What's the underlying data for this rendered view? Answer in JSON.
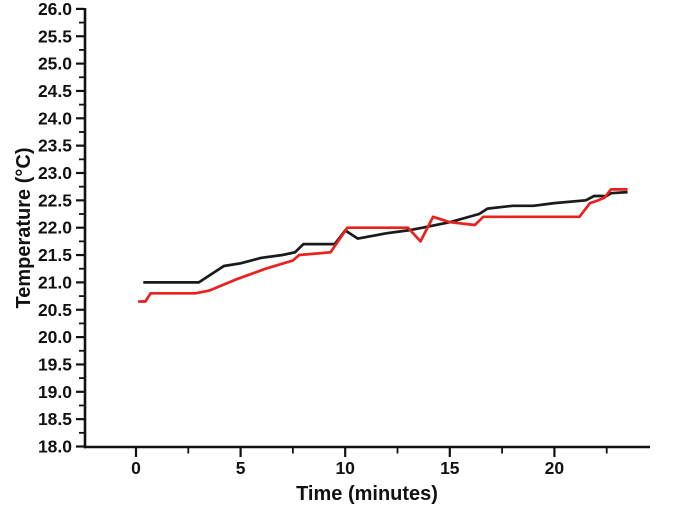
{
  "figure": {
    "background": "#ffffff",
    "axis_color": "#111111"
  },
  "chart_data": {
    "type": "line",
    "title": "",
    "xlabel": "Time (minutes)",
    "ylabel": "Temperature (°C)",
    "xlim": [
      -2.4,
      24.6
    ],
    "ylim": [
      18.0,
      26.0
    ],
    "grid": false,
    "legend": "none",
    "x_major_ticks": [
      0,
      5,
      10,
      15,
      20
    ],
    "x_tick_labels": [
      "0",
      "5",
      "10",
      "15",
      "20"
    ],
    "x_minor_ticks": [
      2.5,
      7.5,
      12.5,
      17.5,
      22.5
    ],
    "y_major_ticks": [
      18.0,
      18.5,
      19.0,
      19.5,
      20.0,
      20.5,
      21.0,
      21.5,
      22.0,
      22.5,
      23.0,
      23.5,
      24.0,
      24.5,
      25.0,
      25.5,
      26.0
    ],
    "y_tick_labels": [
      "18.0",
      "18.5",
      "19.0",
      "19.5",
      "20.0",
      "20.5",
      "21.0",
      "21.5",
      "22.0",
      "22.5",
      "23.0",
      "23.5",
      "24.0",
      "24.5",
      "25.0",
      "25.5",
      "26.0"
    ],
    "y_minor_ticks": [
      18.25,
      18.75,
      19.25,
      19.75,
      20.25,
      20.75,
      21.25,
      21.75,
      22.25,
      22.75,
      23.25,
      23.75,
      24.25,
      24.75,
      25.25,
      25.75
    ],
    "series": [
      {
        "name": "black",
        "color": "#1a1a1a",
        "x": [
          0.35,
          3.0,
          4.2,
          5.0,
          6.0,
          7.0,
          7.6,
          8.0,
          9.5,
          10.0,
          10.6,
          12.0,
          13.0,
          13.7,
          15.0,
          16.4,
          16.8,
          18.0,
          19.0,
          20.0,
          21.5,
          21.9,
          22.5,
          22.7,
          23.5
        ],
        "y": [
          21.0,
          21.0,
          21.3,
          21.35,
          21.45,
          21.5,
          21.55,
          21.7,
          21.7,
          21.95,
          21.8,
          21.9,
          21.95,
          22.0,
          22.1,
          22.25,
          22.35,
          22.4,
          22.4,
          22.45,
          22.5,
          22.58,
          22.58,
          22.63,
          22.65
        ]
      },
      {
        "name": "red",
        "color": "#e8211d",
        "x": [
          0.1,
          0.45,
          0.7,
          2.85,
          3.5,
          4.75,
          6.2,
          7.5,
          7.8,
          9.3,
          10.1,
          13.0,
          13.6,
          14.2,
          15.0,
          16.2,
          16.6,
          21.2,
          21.7,
          22.1,
          22.4,
          22.7,
          23.5
        ],
        "y": [
          20.65,
          20.65,
          20.8,
          20.8,
          20.85,
          21.05,
          21.25,
          21.4,
          21.5,
          21.55,
          22.0,
          22.0,
          21.75,
          22.2,
          22.1,
          22.05,
          22.2,
          22.2,
          22.45,
          22.5,
          22.55,
          22.7,
          22.7
        ]
      }
    ]
  }
}
